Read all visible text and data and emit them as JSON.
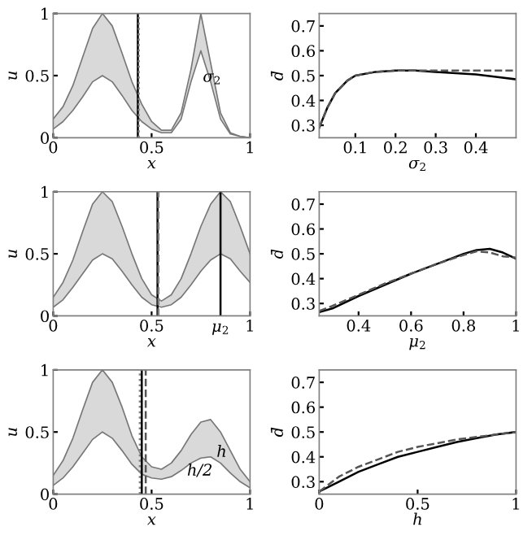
{
  "chart_data": [
    {
      "type": "area",
      "ylabel": "u",
      "xlabel": "x",
      "xlim": [
        0,
        1
      ],
      "ylim": [
        0,
        1
      ],
      "xticks": [
        0,
        0.5,
        1
      ],
      "yticks": [
        0,
        0.5,
        1
      ],
      "x": [
        0,
        0.05,
        0.1,
        0.15,
        0.2,
        0.25,
        0.3,
        0.35,
        0.4,
        0.45,
        0.5,
        0.55,
        0.6,
        0.65,
        0.7,
        0.75,
        0.8,
        0.85,
        0.9,
        0.95,
        1
      ],
      "series": [
        {
          "color": "#d9d9d9",
          "values": [
            0.15,
            0.25,
            0.42,
            0.65,
            0.88,
            1.0,
            0.9,
            0.68,
            0.45,
            0.27,
            0.13,
            0.06,
            0.06,
            0.2,
            0.55,
            1.0,
            0.6,
            0.2,
            0.04,
            0.01,
            0.0
          ]
        },
        {
          "type": "line",
          "color": "#777777",
          "values": [
            0.07,
            0.13,
            0.22,
            0.33,
            0.45,
            0.5,
            0.45,
            0.34,
            0.22,
            0.13,
            0.07,
            0.04,
            0.04,
            0.15,
            0.45,
            0.7,
            0.45,
            0.15,
            0.03,
            0.01,
            0.0
          ]
        }
      ],
      "ref_lines": [
        {
          "axis": "x",
          "value": 0.43,
          "color": "#000000",
          "line_style": "solid"
        },
        {
          "axis": "x",
          "value": 0.435,
          "color": "#808080",
          "line_style": "dotted"
        }
      ],
      "annotations": [
        {
          "text": "σ$_{2}$",
          "x": 0.76,
          "y": 0.45
        }
      ]
    },
    {
      "type": "line",
      "ylabel": "d̄",
      "xlabel": "σ$_{2}$",
      "xlim": [
        0.01,
        0.5
      ],
      "ylim": [
        0.25,
        0.75
      ],
      "xticks": [
        0.1,
        0.2,
        0.3,
        0.4
      ],
      "yticks": [
        0.3,
        0.4,
        0.5,
        0.6,
        0.7
      ],
      "x": [
        0.01,
        0.03,
        0.05,
        0.08,
        0.1,
        0.15,
        0.2,
        0.25,
        0.3,
        0.35,
        0.4,
        0.45,
        0.5
      ],
      "series": [
        {
          "color": "#000000",
          "line_style": "solid",
          "values": [
            0.29,
            0.37,
            0.43,
            0.48,
            0.5,
            0.515,
            0.52,
            0.52,
            0.515,
            0.51,
            0.505,
            0.495,
            0.485
          ]
        },
        {
          "color": "#555555",
          "line_style": "dashed",
          "values": [
            0.29,
            0.37,
            0.43,
            0.48,
            0.5,
            0.515,
            0.52,
            0.52,
            0.52,
            0.52,
            0.52,
            0.52,
            0.52
          ]
        }
      ]
    },
    {
      "type": "area",
      "ylabel": "u",
      "xlabel": "x",
      "xlim": [
        0,
        1
      ],
      "ylim": [
        0,
        1
      ],
      "xticks": [
        0,
        0.5,
        1
      ],
      "yticks": [
        0,
        0.5,
        1
      ],
      "x": [
        0,
        0.05,
        0.1,
        0.15,
        0.2,
        0.25,
        0.3,
        0.35,
        0.4,
        0.45,
        0.5,
        0.55,
        0.6,
        0.65,
        0.7,
        0.75,
        0.8,
        0.85,
        0.9,
        0.95,
        1
      ],
      "series": [
        {
          "color": "#d9d9d9",
          "values": [
            0.15,
            0.27,
            0.45,
            0.68,
            0.9,
            1,
            0.92,
            0.72,
            0.5,
            0.3,
            0.17,
            0.12,
            0.17,
            0.3,
            0.5,
            0.72,
            0.9,
            1,
            0.92,
            0.72,
            0.5
          ]
        },
        {
          "type": "line",
          "color": "#777777",
          "values": [
            0.07,
            0.13,
            0.23,
            0.34,
            0.45,
            0.5,
            0.46,
            0.36,
            0.25,
            0.15,
            0.09,
            0.07,
            0.09,
            0.15,
            0.25,
            0.36,
            0.45,
            0.5,
            0.46,
            0.36,
            0.27
          ]
        }
      ],
      "ref_lines": [
        {
          "axis": "x",
          "value": 0.53,
          "color": "#000000",
          "line_style": "solid"
        },
        {
          "axis": "x",
          "value": 0.535,
          "color": "#808080",
          "line_style": "dashed"
        },
        {
          "axis": "x",
          "value": 0.85,
          "color": "#000000",
          "line_style": "solid",
          "label": "μ$_{2}$"
        }
      ]
    },
    {
      "type": "line",
      "ylabel": "d̄",
      "xlabel": "μ$_{2}$",
      "xlim": [
        0.25,
        1
      ],
      "ylim": [
        0.25,
        0.75
      ],
      "xticks": [
        0.4,
        0.6,
        0.8,
        1
      ],
      "yticks": [
        0.3,
        0.4,
        0.5,
        0.6,
        0.7
      ],
      "x": [
        0.25,
        0.3,
        0.4,
        0.5,
        0.6,
        0.7,
        0.8,
        0.85,
        0.9,
        0.95,
        1
      ],
      "series": [
        {
          "color": "#000000",
          "line_style": "solid",
          "values": [
            0.265,
            0.28,
            0.33,
            0.375,
            0.42,
            0.46,
            0.5,
            0.515,
            0.52,
            0.505,
            0.48
          ]
        },
        {
          "color": "#555555",
          "line_style": "dashed",
          "values": [
            0.27,
            0.29,
            0.335,
            0.38,
            0.42,
            0.46,
            0.495,
            0.51,
            0.505,
            0.49,
            0.485
          ]
        }
      ]
    },
    {
      "type": "area",
      "ylabel": "u",
      "xlabel": "x",
      "xlim": [
        0,
        1
      ],
      "ylim": [
        0,
        1
      ],
      "xticks": [
        0,
        0.5,
        1
      ],
      "yticks": [
        0,
        0.5,
        1
      ],
      "x": [
        0,
        0.05,
        0.1,
        0.15,
        0.2,
        0.25,
        0.3,
        0.35,
        0.4,
        0.45,
        0.5,
        0.55,
        0.6,
        0.65,
        0.7,
        0.75,
        0.8,
        0.85,
        0.9,
        0.95,
        1
      ],
      "series": [
        {
          "color": "#d9d9d9",
          "values": [
            0.15,
            0.27,
            0.45,
            0.68,
            0.9,
            1,
            0.9,
            0.7,
            0.47,
            0.3,
            0.22,
            0.2,
            0.25,
            0.35,
            0.48,
            0.58,
            0.6,
            0.5,
            0.35,
            0.2,
            0.1
          ]
        },
        {
          "type": "line",
          "color": "#777777",
          "values": [
            0.07,
            0.13,
            0.22,
            0.33,
            0.44,
            0.5,
            0.45,
            0.35,
            0.24,
            0.16,
            0.13,
            0.12,
            0.14,
            0.19,
            0.25,
            0.29,
            0.3,
            0.25,
            0.17,
            0.1,
            0.05
          ]
        }
      ],
      "ref_lines": [
        {
          "axis": "x",
          "value": 0.44,
          "color": "#808080",
          "line_style": "dotted"
        },
        {
          "axis": "x",
          "value": 0.45,
          "color": "#000000",
          "line_style": "solid"
        },
        {
          "axis": "x",
          "value": 0.47,
          "color": "#555555",
          "line_style": "dashed"
        }
      ],
      "annotations": [
        {
          "text": "h",
          "x": 0.83,
          "y": 0.3
        },
        "h/2"
      ]
    },
    {
      "type": "line",
      "ylabel": "d̄",
      "xlabel": "h",
      "xlim": [
        0,
        1
      ],
      "ylim": [
        0.25,
        0.75
      ],
      "xticks": [
        0,
        0.5,
        1
      ],
      "yticks": [
        0.3,
        0.4,
        0.5,
        0.6,
        0.7
      ],
      "x": [
        0,
        0.1,
        0.2,
        0.3,
        0.4,
        0.5,
        0.6,
        0.7,
        0.8,
        0.9,
        1
      ],
      "series": [
        {
          "color": "#000000",
          "line_style": "solid",
          "values": [
            0.26,
            0.3,
            0.34,
            0.37,
            0.4,
            0.42,
            0.44,
            0.46,
            0.475,
            0.49,
            0.5
          ]
        },
        {
          "color": "#555555",
          "line_style": "dashed",
          "values": [
            0.26,
            0.32,
            0.36,
            0.39,
            0.42,
            0.44,
            0.455,
            0.47,
            0.48,
            0.49,
            0.5
          ]
        }
      ]
    }
  ]
}
